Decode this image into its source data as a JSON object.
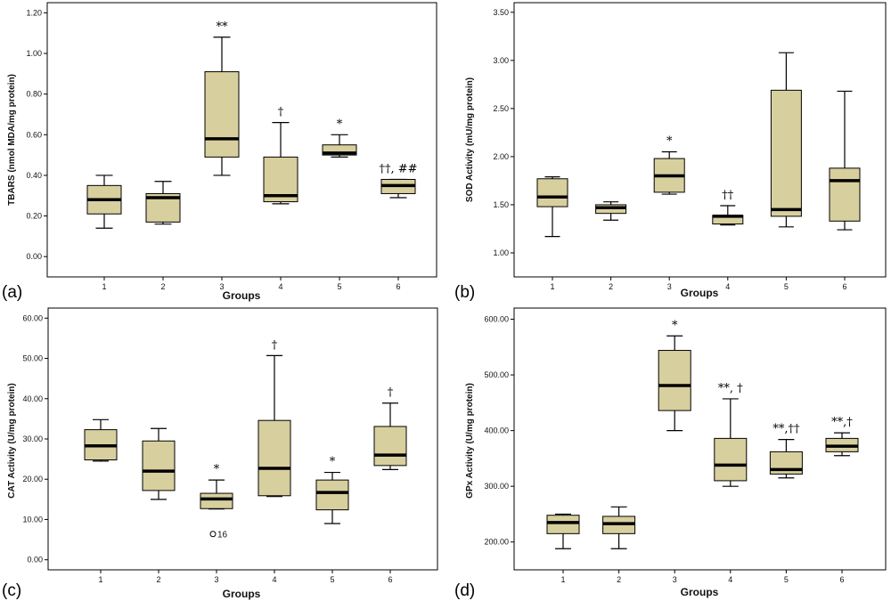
{
  "chart_data": [
    {
      "type": "box",
      "panel_label": "(a)",
      "xlabel": "Groups",
      "ylabel": "TBARS (nmol MDA/mg protein)",
      "ylim": [
        -0.1,
        1.25
      ],
      "yticks": [
        0.0,
        0.2,
        0.4,
        0.6,
        0.8,
        1.0,
        1.2
      ],
      "ytick_labels": [
        "0.00",
        "0.20",
        "0.40",
        "0.60",
        "0.80",
        "1.00",
        "1.20"
      ],
      "categories": [
        "1",
        "2",
        "3",
        "4",
        "5",
        "6"
      ],
      "boxes": [
        {
          "min": 0.14,
          "q1": 0.21,
          "median": 0.28,
          "q3": 0.35,
          "max": 0.4,
          "annotation": ""
        },
        {
          "min": 0.16,
          "q1": 0.17,
          "median": 0.29,
          "q3": 0.31,
          "max": 0.37,
          "annotation": ""
        },
        {
          "min": 0.4,
          "q1": 0.49,
          "median": 0.58,
          "q3": 0.91,
          "max": 1.08,
          "annotation": "**"
        },
        {
          "min": 0.26,
          "q1": 0.27,
          "median": 0.3,
          "q3": 0.49,
          "max": 0.66,
          "annotation": "†"
        },
        {
          "min": 0.49,
          "q1": 0.5,
          "median": 0.51,
          "q3": 0.55,
          "max": 0.6,
          "annotation": "*"
        },
        {
          "min": 0.29,
          "q1": 0.31,
          "median": 0.35,
          "q3": 0.38,
          "max": 0.38,
          "annotation": "††, ##"
        }
      ],
      "outliers": []
    },
    {
      "type": "box",
      "panel_label": "(b)",
      "xlabel": "Groups",
      "ylabel": "SOD Activity (mU/mg protein)",
      "ylim": [
        0.75,
        3.6
      ],
      "yticks": [
        1.0,
        1.5,
        2.0,
        2.5,
        3.0,
        3.5
      ],
      "ytick_labels": [
        "1.00",
        "1.50",
        "2.00",
        "2.50",
        "3.00",
        "3.50"
      ],
      "categories": [
        "1",
        "2",
        "3",
        "4",
        "5",
        "6"
      ],
      "boxes": [
        {
          "min": 1.17,
          "q1": 1.48,
          "median": 1.58,
          "q3": 1.77,
          "max": 1.79,
          "annotation": ""
        },
        {
          "min": 1.34,
          "q1": 1.41,
          "median": 1.47,
          "q3": 1.5,
          "max": 1.53,
          "annotation": ""
        },
        {
          "min": 1.61,
          "q1": 1.63,
          "median": 1.8,
          "q3": 1.98,
          "max": 2.05,
          "annotation": "*"
        },
        {
          "min": 1.29,
          "q1": 1.3,
          "median": 1.38,
          "q3": 1.39,
          "max": 1.49,
          "annotation": "††"
        },
        {
          "min": 1.27,
          "q1": 1.38,
          "median": 1.45,
          "q3": 2.69,
          "max": 3.08,
          "annotation": ""
        },
        {
          "min": 1.24,
          "q1": 1.33,
          "median": 1.75,
          "q3": 1.88,
          "max": 2.68,
          "annotation": ""
        }
      ],
      "outliers": []
    },
    {
      "type": "box",
      "panel_label": "(c)",
      "xlabel": "Groups",
      "ylabel": "CAT Activity (U/mg protein)",
      "ylim": [
        -2.5,
        62.5
      ],
      "yticks": [
        0,
        10,
        20,
        30,
        40,
        50,
        60
      ],
      "ytick_labels": [
        "0.00",
        "10.00",
        "20.00",
        "30.00",
        "40.00",
        "50.00",
        "60.00"
      ],
      "categories": [
        "1",
        "2",
        "3",
        "4",
        "5",
        "6"
      ],
      "boxes": [
        {
          "min": 24.5,
          "q1": 24.8,
          "median": 28.3,
          "q3": 32.3,
          "max": 34.8,
          "annotation": ""
        },
        {
          "min": 15.0,
          "q1": 17.2,
          "median": 22.0,
          "q3": 29.5,
          "max": 32.6,
          "annotation": ""
        },
        {
          "min": 12.6,
          "q1": 12.7,
          "median": 15.1,
          "q3": 16.5,
          "max": 19.8,
          "annotation": "*"
        },
        {
          "min": 15.7,
          "q1": 15.9,
          "median": 22.7,
          "q3": 34.6,
          "max": 50.7,
          "annotation": "†"
        },
        {
          "min": 9.0,
          "q1": 12.4,
          "median": 16.7,
          "q3": 19.8,
          "max": 21.7,
          "annotation": "*"
        },
        {
          "min": 22.4,
          "q1": 23.4,
          "median": 26.0,
          "q3": 33.1,
          "max": 38.9,
          "annotation": "†"
        }
      ],
      "outliers": [
        {
          "group": "3",
          "value": 6.4,
          "label": "16"
        }
      ]
    },
    {
      "type": "box",
      "panel_label": "(d)",
      "xlabel": "Groups",
      "ylabel": "GPx Activity (U/mg protein)",
      "ylim": [
        150,
        620
      ],
      "yticks": [
        200,
        300,
        400,
        500,
        600
      ],
      "ytick_labels": [
        "200.00",
        "300.00",
        "400.00",
        "500.00",
        "600.00"
      ],
      "categories": [
        "1",
        "2",
        "3",
        "4",
        "5",
        "6"
      ],
      "boxes": [
        {
          "min": 188,
          "q1": 215,
          "median": 235,
          "q3": 248,
          "max": 250,
          "annotation": ""
        },
        {
          "min": 188,
          "q1": 215,
          "median": 233,
          "q3": 246,
          "max": 263,
          "annotation": ""
        },
        {
          "min": 400,
          "q1": 436,
          "median": 481,
          "q3": 544,
          "max": 570,
          "annotation": "*"
        },
        {
          "min": 300,
          "q1": 310,
          "median": 338,
          "q3": 386,
          "max": 457,
          "annotation": "**, †"
        },
        {
          "min": 315,
          "q1": 322,
          "median": 330,
          "q3": 362,
          "max": 384,
          "annotation": "**,††"
        },
        {
          "min": 355,
          "q1": 362,
          "median": 372,
          "q3": 386,
          "max": 396,
          "annotation": "**,†"
        }
      ],
      "outliers": []
    }
  ],
  "style": {
    "box_fill": "#d8cf9e",
    "box_stroke": "#000000",
    "median_color": "#000000"
  }
}
